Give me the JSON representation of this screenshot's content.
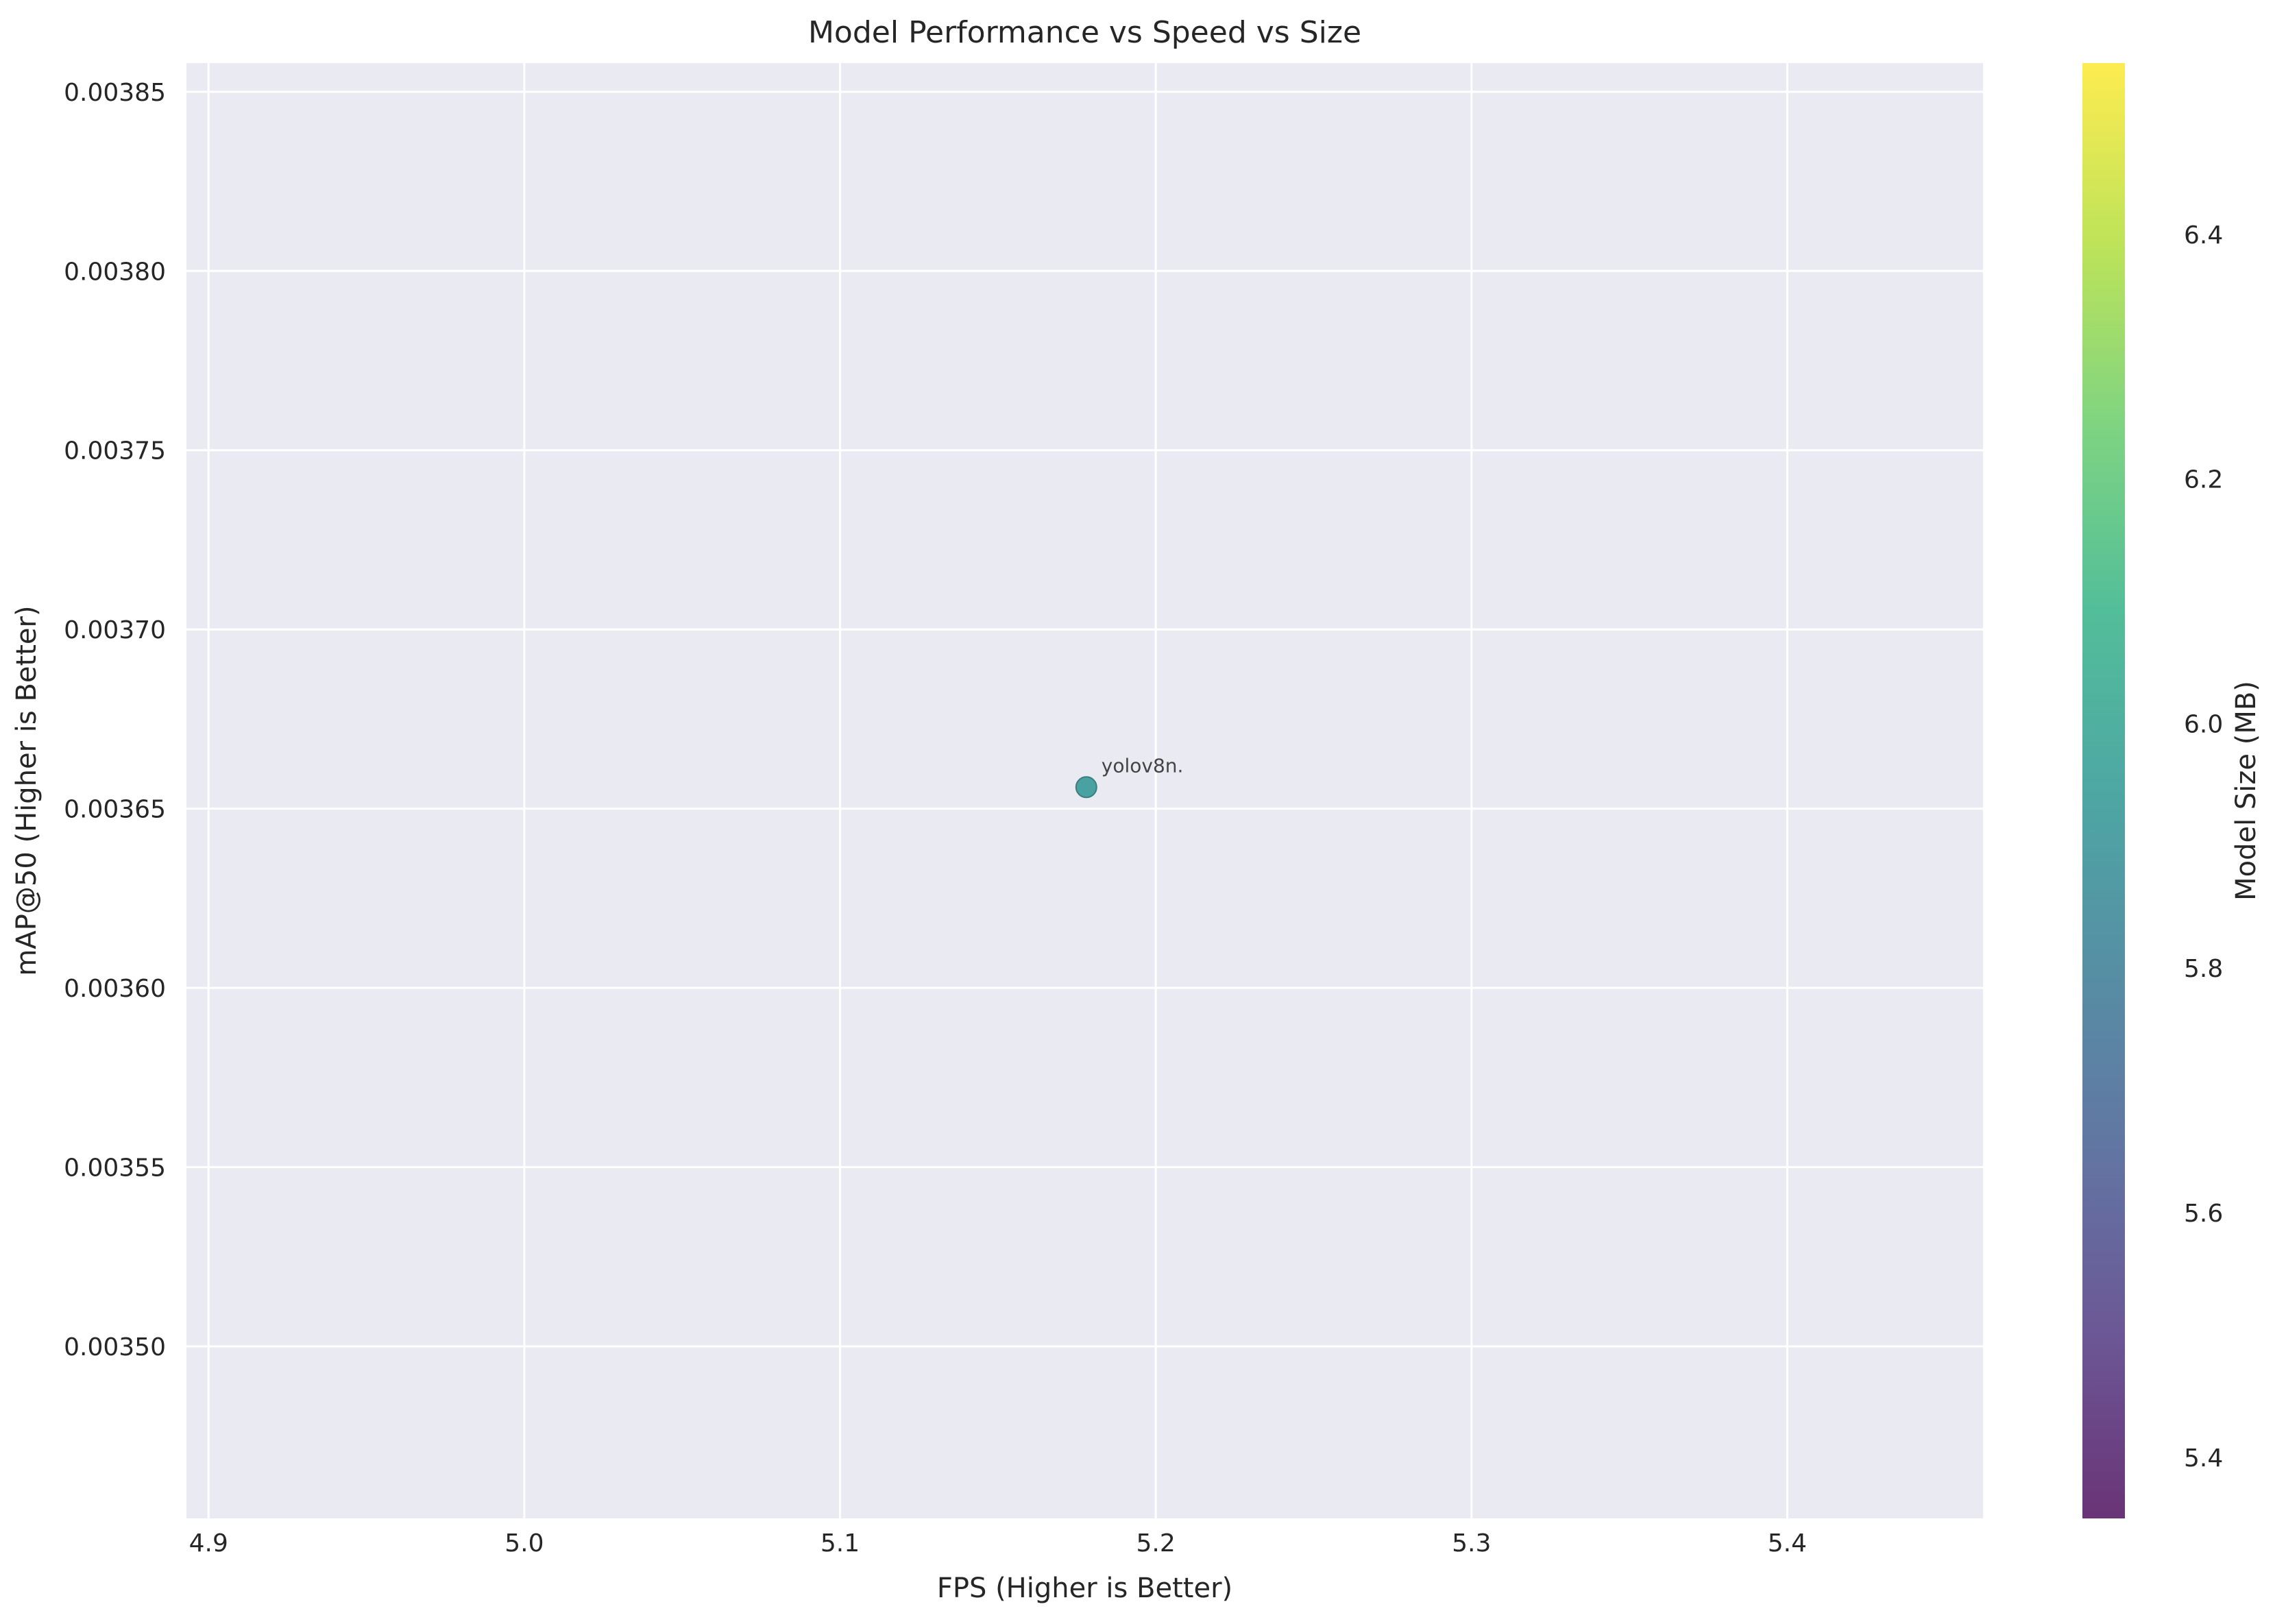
{
  "chart_data": {
    "type": "scatter",
    "title": "Model Performance vs Speed vs Size",
    "xlabel": "FPS (Higher is Better)",
    "ylabel": "mAP@50 (Higher is Better)",
    "xlim": [
      4.893,
      5.462
    ],
    "ylim": [
      0.003452,
      0.003858
    ],
    "x_ticks": [
      4.9,
      5.0,
      5.1,
      5.2,
      5.3,
      5.4
    ],
    "x_tick_labels": [
      "4.9",
      "5.0",
      "5.1",
      "5.2",
      "5.3",
      "5.4"
    ],
    "y_ticks": [
      0.0035,
      0.00355,
      0.0036,
      0.00365,
      0.0037,
      0.00375,
      0.0038,
      0.00385
    ],
    "y_tick_labels": [
      "0.00350",
      "0.00355",
      "0.00360",
      "0.00365",
      "0.00370",
      "0.00375",
      "0.00380",
      "0.00385"
    ],
    "grid": true,
    "points": [
      {
        "x": 5.178,
        "y": 0.003656,
        "size": 5.94,
        "label": "yolov8n."
      }
    ],
    "colorbar": {
      "label": "Model Size (MB)",
      "colormap": "viridis",
      "range": [
        5.35,
        6.54
      ],
      "ticks": [
        5.4,
        5.6,
        5.8,
        6.0,
        6.2,
        6.4
      ],
      "tick_labels": [
        "5.4",
        "5.6",
        "5.8",
        "6.0",
        "6.2",
        "6.4"
      ]
    },
    "colors": {
      "plot_background": "#eaeaf2",
      "grid": "#ffffff",
      "text": "#262626"
    }
  }
}
